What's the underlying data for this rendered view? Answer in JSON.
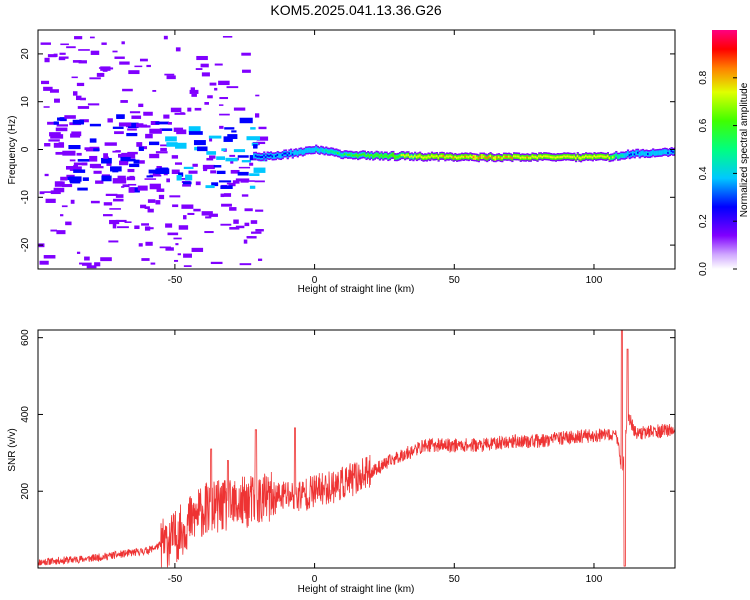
{
  "title": "KOM5.2025.041.13.36.G26",
  "chart_data": [
    {
      "type": "heatmap",
      "xlabel": "Height of straight line (km)",
      "ylabel": "Frequency (Hz)",
      "xlim": [
        -99,
        129
      ],
      "ylim": [
        -25,
        25
      ],
      "x_ticks": [
        -50,
        0,
        50,
        100
      ],
      "y_ticks": [
        -20,
        -10,
        0,
        10,
        20
      ],
      "colorbar": {
        "label": "Normalized spectral amplitude",
        "range": [
          0,
          1
        ],
        "ticks": [
          "0.0",
          "0.2",
          "0.4",
          "0.6",
          "0.8"
        ]
      },
      "main_ridge": [
        {
          "x": -20,
          "f": -1.5,
          "amp": 0.25
        },
        {
          "x": -10,
          "f": -1.0,
          "amp": 0.25
        },
        {
          "x": 0,
          "f": 0.0,
          "amp": 0.35
        },
        {
          "x": 10,
          "f": -1.0,
          "amp": 0.5
        },
        {
          "x": 20,
          "f": -1.3,
          "amp": 0.55
        },
        {
          "x": 40,
          "f": -1.5,
          "amp": 0.7
        },
        {
          "x": 60,
          "f": -1.6,
          "amp": 0.75
        },
        {
          "x": 80,
          "f": -1.6,
          "amp": 0.7
        },
        {
          "x": 105,
          "f": -1.6,
          "amp": 0.7
        },
        {
          "x": 112,
          "f": -1.0,
          "amp": 0.25
        },
        {
          "x": 129,
          "f": -0.5,
          "amp": 0.3
        }
      ]
    },
    {
      "type": "line",
      "xlabel": "Height of straight line (km)",
      "ylabel": "SNR (v/v)",
      "xlim": [
        -99,
        129
      ],
      "ylim": [
        0,
        620
      ],
      "x_ticks": [
        -50,
        0,
        50,
        100
      ],
      "y_ticks": [
        200,
        400,
        600
      ],
      "color": "#ee3333",
      "series": [
        {
          "x": [
            -99,
            -90,
            -80,
            -70,
            -60,
            -55,
            -50,
            -45,
            -40,
            -35,
            -30,
            -25,
            -20,
            -15,
            -10,
            -5,
            0,
            10,
            20,
            30,
            40,
            50,
            60,
            70,
            80,
            90,
            100,
            105,
            108,
            110,
            112,
            115,
            120,
            129
          ],
          "values": [
            15,
            20,
            25,
            35,
            45,
            60,
            80,
            120,
            150,
            160,
            160,
            170,
            180,
            180,
            190,
            190,
            200,
            220,
            250,
            290,
            320,
            320,
            320,
            330,
            330,
            340,
            345,
            345,
            350,
            250,
            400,
            350,
            355,
            360
          ],
          "spikes": [
            {
              "x": -37,
              "y": 310
            },
            {
              "x": -31,
              "y": 280
            },
            {
              "x": -21,
              "y": 360
            },
            {
              "x": -7,
              "y": 365
            },
            {
              "x": 110,
              "y": 620
            },
            {
              "x": 111,
              "y": 5
            },
            {
              "x": 112,
              "y": 570
            }
          ]
        }
      ]
    }
  ]
}
